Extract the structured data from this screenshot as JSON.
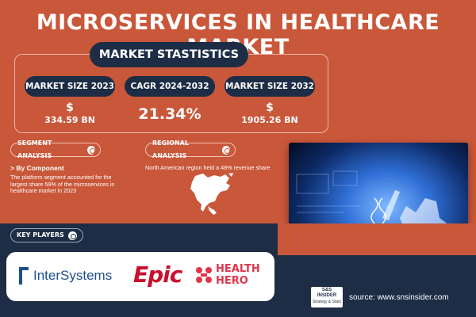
{
  "header": {
    "title": "MICROSERVICES IN HEALTHCARE MARKET"
  },
  "stats": {
    "section_title": "MARKET STASTISTICS",
    "items": [
      {
        "label": "MARKET SIZE 2023",
        "currency": "$",
        "value": "334.59 BN"
      },
      {
        "label": "CAGR 2024-2032",
        "value": "21.34%"
      },
      {
        "label": "MARKET SIZE 2032",
        "currency": "$",
        "value": "1905.26 BN"
      }
    ]
  },
  "segment": {
    "title": "SEGMENT ANALYSIS",
    "subtitle": "> By Component",
    "description": "The platform segment accounted for the largest share 59% of the microservices in healthcare market in 2023"
  },
  "regional": {
    "title": "REGIONAL ANALYSIS",
    "description": "North American region held a 48% revenue share"
  },
  "key_players": {
    "title": "KEY PLAYERS",
    "logos": [
      {
        "name": "InterSystems"
      },
      {
        "name": "Epic"
      },
      {
        "name_line1": "HEALTH",
        "name_line2": "HERO"
      }
    ]
  },
  "footer": {
    "source": "source: www.snsinsider.com",
    "brand_line1": "S&S",
    "brand_line2": "INSIDER",
    "brand_tagline": "Strategy & Stats"
  },
  "colors": {
    "background": "#c9573a",
    "navy": "#1d2d46",
    "epic_red": "#c8102e",
    "intersystems_blue": "#1f4e8c",
    "healthhero_red": "#e0364c"
  }
}
